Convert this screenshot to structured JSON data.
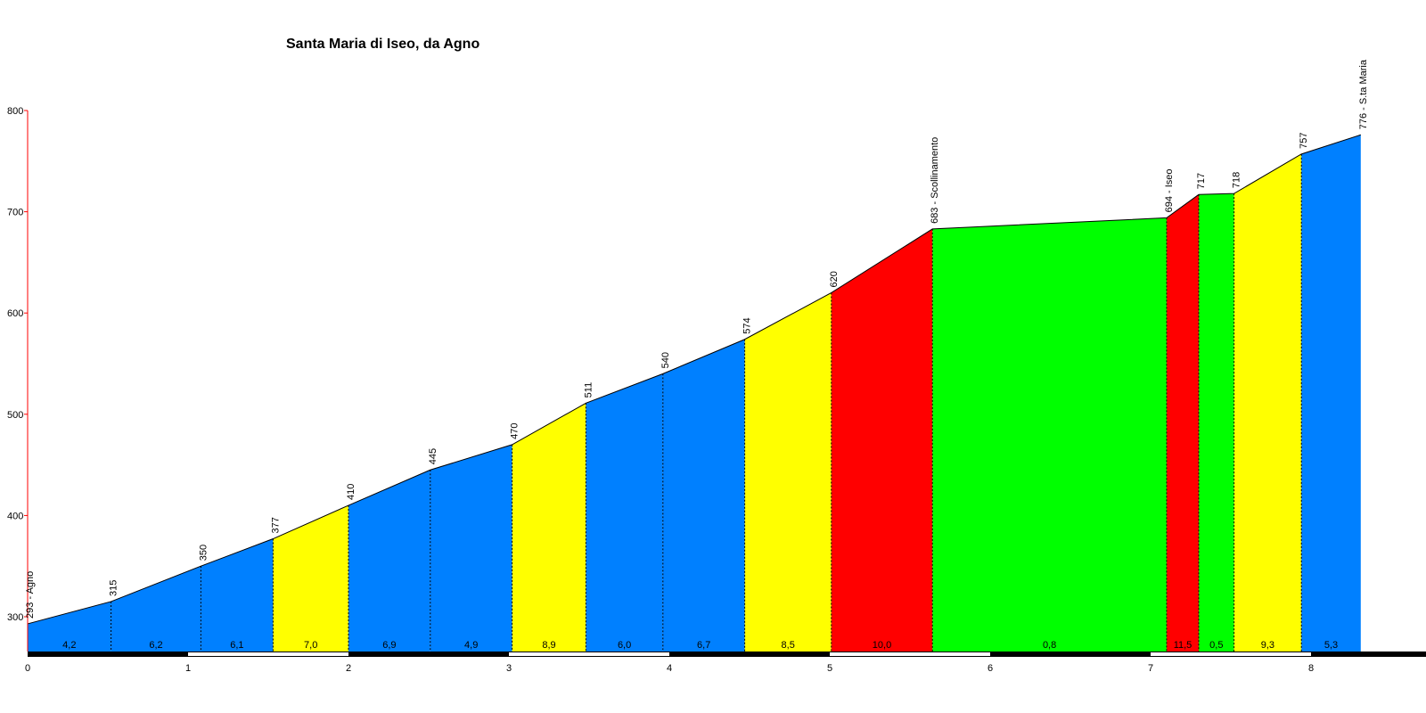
{
  "chart_data": {
    "type": "area",
    "title": "Santa Maria di Iseo, da Agno",
    "ylim": [
      275,
      800
    ],
    "xlim": [
      0,
      8.76
    ],
    "y_ticks": [
      300,
      400,
      500,
      600,
      700,
      800
    ],
    "x_ticks": [
      0,
      1,
      2,
      3,
      4,
      5,
      6,
      7,
      8
    ],
    "grid": false,
    "colors": {
      "blue": "#0080ff",
      "yellow": "#ffff00",
      "red": "#ff0000",
      "green": "#00ff00",
      "axis": "#ff0000"
    },
    "points": [
      {
        "x": 0.0,
        "y": 293,
        "label": "293 - Agno"
      },
      {
        "x": 0.52,
        "y": 315,
        "label": "315"
      },
      {
        "x": 1.08,
        "y": 350,
        "label": "350"
      },
      {
        "x": 1.53,
        "y": 377,
        "label": "377"
      },
      {
        "x": 2.0,
        "y": 410,
        "label": "410"
      },
      {
        "x": 2.51,
        "y": 445,
        "label": "445"
      },
      {
        "x": 3.02,
        "y": 470,
        "label": "470"
      },
      {
        "x": 3.48,
        "y": 511,
        "label": "511"
      },
      {
        "x": 3.96,
        "y": 540,
        "label": "540"
      },
      {
        "x": 4.47,
        "y": 574,
        "label": "574"
      },
      {
        "x": 5.01,
        "y": 620,
        "label": "620"
      },
      {
        "x": 5.64,
        "y": 683,
        "label": "683 - Scollinamento"
      },
      {
        "x": 7.1,
        "y": 694,
        "label": "694 - Iseo"
      },
      {
        "x": 7.3,
        "y": 717,
        "label": "717"
      },
      {
        "x": 7.52,
        "y": 718,
        "label": "718"
      },
      {
        "x": 7.94,
        "y": 757,
        "label": "757"
      },
      {
        "x": 8.31,
        "y": 776,
        "label": "776 - S.ta Maria"
      }
    ],
    "segments": [
      {
        "gradient": "4,2",
        "color": "blue"
      },
      {
        "gradient": "6,2",
        "color": "blue"
      },
      {
        "gradient": "6,1",
        "color": "blue"
      },
      {
        "gradient": "7,0",
        "color": "yellow"
      },
      {
        "gradient": "6,9",
        "color": "blue"
      },
      {
        "gradient": "4,9",
        "color": "blue"
      },
      {
        "gradient": "8,9",
        "color": "yellow"
      },
      {
        "gradient": "6,0",
        "color": "blue"
      },
      {
        "gradient": "6,7",
        "color": "blue"
      },
      {
        "gradient": "8,5",
        "color": "yellow"
      },
      {
        "gradient": "10,0",
        "color": "red"
      },
      {
        "gradient": "0,8",
        "color": "green"
      },
      {
        "gradient": "11,5",
        "color": "red"
      },
      {
        "gradient": "0,5",
        "color": "green"
      },
      {
        "gradient": "9,3",
        "color": "yellow"
      },
      {
        "gradient": "5,3",
        "color": "blue"
      }
    ]
  }
}
